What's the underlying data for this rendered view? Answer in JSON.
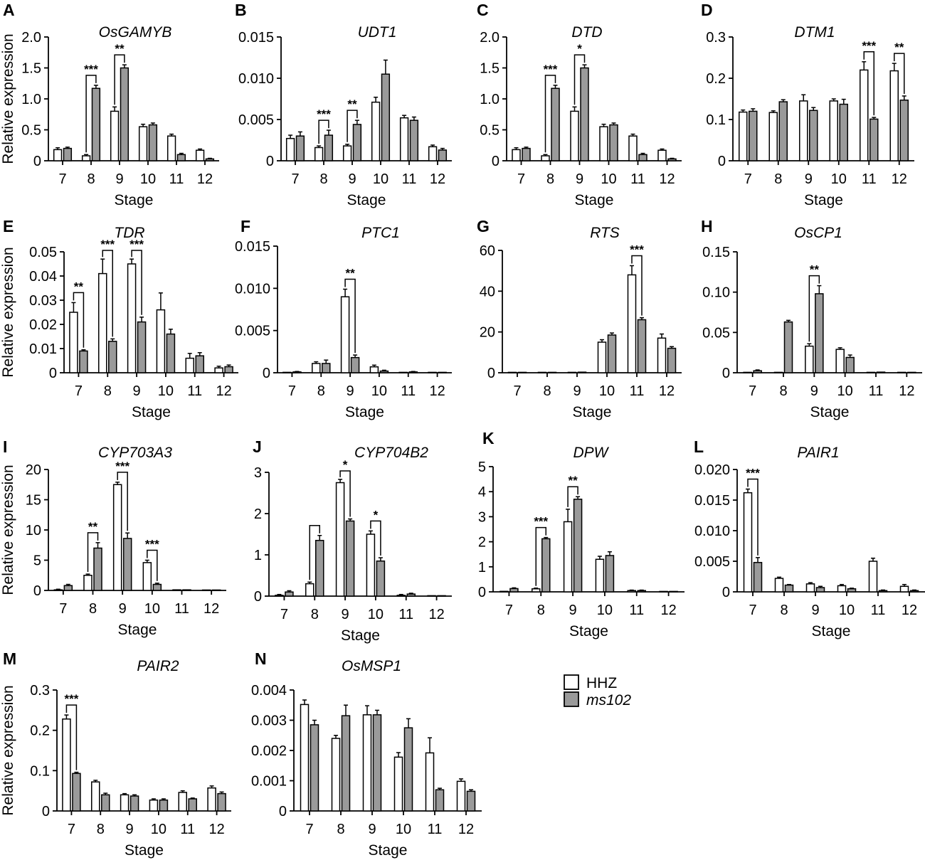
{
  "colors": {
    "hhz_fill": "#ffffff",
    "ms102_fill": "#9a9a9a",
    "stroke": "#000000"
  },
  "legend": {
    "items": [
      {
        "label": "HHZ",
        "italic": false
      },
      {
        "label": "ms102",
        "italic": true
      }
    ]
  },
  "chart_data": [
    {
      "type": "bar",
      "panel": "A",
      "title": "OsGAMYB",
      "xlabel": "Stage",
      "ylabel": "Relative expression",
      "categories": [
        "7",
        "8",
        "9",
        "10",
        "11",
        "12"
      ],
      "ylim": [
        0,
        2.0
      ],
      "yticks": [
        "0",
        "0.5",
        "1.0",
        "1.5",
        "2.0"
      ],
      "series": [
        {
          "name": "HHZ",
          "values": [
            0.18,
            0.08,
            0.8,
            0.55,
            0.4,
            0.17
          ],
          "errors": [
            0.03,
            0.02,
            0.07,
            0.04,
            0.03,
            0.02
          ]
        },
        {
          "name": "ms102",
          "values": [
            0.2,
            1.17,
            1.5,
            0.58,
            0.1,
            0.03
          ],
          "errors": [
            0.02,
            0.05,
            0.05,
            0.03,
            0.02,
            0.01
          ]
        }
      ],
      "significance": [
        {
          "category": "8",
          "label": "***"
        },
        {
          "category": "9",
          "label": "**"
        }
      ]
    },
    {
      "type": "bar",
      "panel": "B",
      "title": "UDT1",
      "xlabel": "Stage",
      "ylabel": "",
      "categories": [
        "7",
        "8",
        "9",
        "10",
        "11",
        "12"
      ],
      "ylim": [
        0,
        0.015
      ],
      "yticks": [
        "0",
        "0.005",
        "0.010",
        "0.015"
      ],
      "series": [
        {
          "name": "HHZ",
          "values": [
            0.0027,
            0.0016,
            0.0018,
            0.0071,
            0.0052,
            0.0017
          ],
          "errors": [
            0.0004,
            0.0002,
            0.0002,
            0.0006,
            0.0003,
            0.0002
          ]
        },
        {
          "name": "ms102",
          "values": [
            0.003,
            0.0031,
            0.0044,
            0.0105,
            0.0049,
            0.0013
          ],
          "errors": [
            0.0005,
            0.0006,
            0.0005,
            0.0017,
            0.0004,
            0.0002
          ]
        }
      ],
      "significance": [
        {
          "category": "8",
          "label": "***"
        },
        {
          "category": "9",
          "label": "**"
        }
      ]
    },
    {
      "type": "bar",
      "panel": "C",
      "title": "DTD",
      "xlabel": "Stage",
      "ylabel": "",
      "categories": [
        "7",
        "8",
        "9",
        "10",
        "11",
        "12"
      ],
      "ylim": [
        0,
        2.0
      ],
      "yticks": [
        "0",
        "0.5",
        "1.0",
        "1.5",
        "2.0"
      ],
      "series": [
        {
          "name": "HHZ",
          "values": [
            0.18,
            0.08,
            0.8,
            0.55,
            0.4,
            0.17
          ],
          "errors": [
            0.03,
            0.02,
            0.07,
            0.04,
            0.03,
            0.02
          ]
        },
        {
          "name": "ms102",
          "values": [
            0.2,
            1.17,
            1.5,
            0.58,
            0.1,
            0.03
          ],
          "errors": [
            0.02,
            0.05,
            0.05,
            0.03,
            0.02,
            0.01
          ]
        }
      ],
      "significance": [
        {
          "category": "8",
          "label": "***"
        },
        {
          "category": "9",
          "label": "*"
        }
      ]
    },
    {
      "type": "bar",
      "panel": "D",
      "title": "DTM1",
      "xlabel": "Stage",
      "ylabel": "",
      "categories": [
        "7",
        "8",
        "9",
        "10",
        "11",
        "12"
      ],
      "ylim": [
        0,
        0.3
      ],
      "yticks": [
        "0",
        "0.1",
        "0.2",
        "0.3"
      ],
      "series": [
        {
          "name": "HHZ",
          "values": [
            0.118,
            0.117,
            0.145,
            0.145,
            0.22,
            0.218
          ],
          "errors": [
            0.005,
            0.004,
            0.015,
            0.005,
            0.02,
            0.018
          ]
        },
        {
          "name": "ms102",
          "values": [
            0.12,
            0.143,
            0.122,
            0.137,
            0.101,
            0.147
          ],
          "errors": [
            0.006,
            0.005,
            0.007,
            0.012,
            0.004,
            0.01
          ]
        }
      ],
      "significance": [
        {
          "category": "11",
          "label": "***"
        },
        {
          "category": "12",
          "label": "**"
        }
      ]
    },
    {
      "type": "bar",
      "panel": "E",
      "title": "TDR",
      "xlabel": "Stage",
      "ylabel": "Relative expression",
      "categories": [
        "7",
        "8",
        "9",
        "10",
        "11",
        "12"
      ],
      "ylim": [
        0,
        0.05
      ],
      "yticks": [
        "0",
        "0.01",
        "0.02",
        "0.03",
        "0.04",
        "0.05"
      ],
      "series": [
        {
          "name": "HHZ",
          "values": [
            0.025,
            0.041,
            0.045,
            0.026,
            0.006,
            0.002
          ],
          "errors": [
            0.004,
            0.006,
            0.002,
            0.007,
            0.002,
            0.0007
          ]
        },
        {
          "name": "ms102",
          "values": [
            0.009,
            0.013,
            0.021,
            0.016,
            0.007,
            0.0025
          ],
          "errors": [
            0.0005,
            0.001,
            0.002,
            0.002,
            0.0013,
            0.0007
          ]
        }
      ],
      "significance": [
        {
          "category": "7",
          "label": "**"
        },
        {
          "category": "8",
          "label": "***"
        },
        {
          "category": "9",
          "label": "***"
        }
      ]
    },
    {
      "type": "bar",
      "panel": "F",
      "title": "PTC1",
      "xlabel": "Stage",
      "ylabel": "",
      "categories": [
        "7",
        "8",
        "9",
        "10",
        "11",
        "12"
      ],
      "ylim": [
        0,
        0.015
      ],
      "yticks": [
        "0",
        "0.005",
        "0.010",
        "0.015"
      ],
      "series": [
        {
          "name": "HHZ",
          "values": [
            5e-05,
            0.0011,
            0.009,
            0.0007,
            5e-05,
            2e-05
          ],
          "errors": [
            5e-05,
            0.0002,
            0.0009,
            0.0002,
            5e-05,
            2e-05
          ]
        },
        {
          "name": "ms102",
          "values": [
            0.0001,
            0.0011,
            0.0018,
            0.0002,
            0.0001,
            2e-05
          ],
          "errors": [
            5e-05,
            0.0004,
            0.0003,
            0.0001,
            5e-05,
            2e-05
          ]
        }
      ],
      "significance": [
        {
          "category": "9",
          "label": "**"
        }
      ]
    },
    {
      "type": "bar",
      "panel": "G",
      "title": "RTS",
      "xlabel": "Stage",
      "ylabel": "",
      "categories": [
        "7",
        "8",
        "9",
        "10",
        "11",
        "12"
      ],
      "ylim": [
        0,
        60
      ],
      "yticks": [
        "0",
        "20",
        "40",
        "60"
      ],
      "series": [
        {
          "name": "HHZ",
          "values": [
            0.1,
            0.1,
            0.1,
            15,
            48,
            17
          ],
          "errors": [
            0.1,
            0.1,
            0.1,
            1.2,
            4.5,
            2.0
          ]
        },
        {
          "name": "ms102",
          "values": [
            0.1,
            0.1,
            0.3,
            18.5,
            26,
            12
          ],
          "errors": [
            0.1,
            0.1,
            0.2,
            1.0,
            1.0,
            0.8
          ]
        }
      ],
      "significance": [
        {
          "category": "11",
          "label": "***"
        }
      ]
    },
    {
      "type": "bar",
      "panel": "H",
      "title": "OsCP1",
      "xlabel": "Stage",
      "ylabel": "",
      "categories": [
        "7",
        "8",
        "9",
        "10",
        "11",
        "12"
      ],
      "ylim": [
        0,
        0.15
      ],
      "yticks": [
        "0",
        "0.05",
        "0.10",
        "0.15"
      ],
      "series": [
        {
          "name": "HHZ",
          "values": [
            0.0003,
            0.0003,
            0.033,
            0.029,
            0.0005,
            0.0002
          ],
          "errors": [
            0.0003,
            0.0003,
            0.003,
            0.002,
            0.0003,
            0.0002
          ]
        },
        {
          "name": "ms102",
          "values": [
            0.0025,
            0.063,
            0.098,
            0.019,
            0.0008,
            0.0003
          ],
          "errors": [
            0.001,
            0.002,
            0.01,
            0.003,
            0.0003,
            0.0002
          ]
        }
      ],
      "significance": [
        {
          "category": "9",
          "label": "**"
        }
      ]
    },
    {
      "type": "bar",
      "panel": "I",
      "title": "CYP703A3",
      "xlabel": "Stage",
      "ylabel": "Relative expression",
      "categories": [
        "7",
        "8",
        "9",
        "10",
        "11",
        "12"
      ],
      "ylim": [
        0,
        20
      ],
      "yticks": [
        "0",
        "5",
        "10",
        "15",
        "20"
      ],
      "series": [
        {
          "name": "HHZ",
          "values": [
            0.1,
            2.5,
            17.5,
            4.6,
            0.1,
            0.05
          ],
          "errors": [
            0.1,
            0.2,
            0.4,
            0.4,
            0.05,
            0.03
          ]
        },
        {
          "name": "ms102",
          "values": [
            0.8,
            7.0,
            8.6,
            1.0,
            0.1,
            0.05
          ],
          "errors": [
            0.2,
            0.9,
            0.9,
            0.2,
            0.05,
            0.03
          ]
        }
      ],
      "significance": [
        {
          "category": "8",
          "label": "**"
        },
        {
          "category": "9",
          "label": "***"
        },
        {
          "category": "10",
          "label": "***"
        }
      ]
    },
    {
      "type": "bar",
      "panel": "J",
      "title": "CYP704B2",
      "xlabel": "Stage",
      "ylabel": "",
      "categories": [
        "7",
        "8",
        "9",
        "10",
        "11",
        "12"
      ],
      "ylim": [
        0,
        3
      ],
      "yticks": [
        "0",
        "1",
        "2",
        "3"
      ],
      "series": [
        {
          "name": "HHZ",
          "values": [
            0.02,
            0.3,
            2.75,
            1.5,
            0.02,
            0.01
          ],
          "errors": [
            0.02,
            0.04,
            0.08,
            0.08,
            0.02,
            0.01
          ]
        },
        {
          "name": "ms102",
          "values": [
            0.1,
            1.35,
            1.82,
            0.85,
            0.05,
            0.01
          ],
          "errors": [
            0.03,
            0.12,
            0.05,
            0.08,
            0.02,
            0.01
          ]
        }
      ],
      "significance": [
        {
          "category": "8",
          "label": ""
        },
        {
          "category": "9",
          "label": "*"
        },
        {
          "category": "10",
          "label": "*"
        }
      ]
    },
    {
      "type": "bar",
      "panel": "K",
      "title": "DPW",
      "xlabel": "Stage",
      "ylabel": "",
      "categories": [
        "7",
        "8",
        "9",
        "10",
        "11",
        "12"
      ],
      "ylim": [
        0,
        5
      ],
      "yticks": [
        "0",
        "1",
        "2",
        "3",
        "4",
        "5"
      ],
      "series": [
        {
          "name": "HHZ",
          "values": [
            0.02,
            0.12,
            2.8,
            1.3,
            0.05,
            0.01
          ],
          "errors": [
            0.02,
            0.03,
            0.5,
            0.12,
            0.02,
            0.01
          ]
        },
        {
          "name": "ms102",
          "values": [
            0.13,
            2.12,
            3.7,
            1.45,
            0.05,
            0.01
          ],
          "errors": [
            0.03,
            0.05,
            0.1,
            0.15,
            0.02,
            0.01
          ]
        }
      ],
      "significance": [
        {
          "category": "8",
          "label": "***"
        },
        {
          "category": "9",
          "label": "**"
        }
      ]
    },
    {
      "type": "bar",
      "panel": "L",
      "title": "PAIR1",
      "xlabel": "Stage",
      "ylabel": "",
      "categories": [
        "7",
        "8",
        "9",
        "10",
        "11",
        "12"
      ],
      "ylim": [
        0,
        0.02
      ],
      "yticks": [
        "0",
        "0.005",
        "0.010",
        "0.015",
        "0.020"
      ],
      "series": [
        {
          "name": "HHZ",
          "values": [
            0.0162,
            0.0022,
            0.0013,
            0.001,
            0.005,
            0.0009
          ],
          "errors": [
            0.0006,
            0.0002,
            0.0002,
            0.0002,
            0.0005,
            0.0003
          ]
        },
        {
          "name": "ms102",
          "values": [
            0.0048,
            0.0011,
            0.0007,
            0.0005,
            0.0002,
            0.0002
          ],
          "errors": [
            0.0008,
            0.0001,
            0.0002,
            0.0001,
            0.0001,
            0.0001
          ]
        }
      ],
      "significance": [
        {
          "category": "7",
          "label": "***"
        }
      ]
    },
    {
      "type": "bar",
      "panel": "M",
      "title": "PAIR2",
      "xlabel": "Stage",
      "ylabel": "Relative expression",
      "categories": [
        "7",
        "8",
        "9",
        "10",
        "11",
        "12"
      ],
      "ylim": [
        0,
        0.3
      ],
      "yticks": [
        "0",
        "0.1",
        "0.2",
        "0.3"
      ],
      "series": [
        {
          "name": "HHZ",
          "values": [
            0.228,
            0.072,
            0.04,
            0.027,
            0.046,
            0.057
          ],
          "errors": [
            0.01,
            0.004,
            0.003,
            0.003,
            0.004,
            0.005
          ]
        },
        {
          "name": "ms102",
          "values": [
            0.093,
            0.04,
            0.037,
            0.027,
            0.03,
            0.043
          ],
          "errors": [
            0.003,
            0.004,
            0.003,
            0.003,
            0.002,
            0.004
          ]
        }
      ],
      "significance": [
        {
          "category": "7",
          "label": "***"
        }
      ]
    },
    {
      "type": "bar",
      "panel": "N",
      "title": "OsMSP1",
      "xlabel": "Stage",
      "ylabel": "",
      "categories": [
        "7",
        "8",
        "9",
        "10",
        "11",
        "12"
      ],
      "ylim": [
        0,
        0.004
      ],
      "yticks": [
        "0",
        "0.001",
        "0.002",
        "0.003",
        "0.004"
      ],
      "series": [
        {
          "name": "HHZ",
          "values": [
            0.00352,
            0.0024,
            0.00318,
            0.00178,
            0.00192,
            0.00098
          ],
          "errors": [
            0.00015,
            0.0001,
            0.0003,
            0.00015,
            0.0005,
            8e-05
          ]
        },
        {
          "name": "ms102",
          "values": [
            0.00285,
            0.00315,
            0.00318,
            0.00275,
            0.0007,
            0.00065
          ],
          "errors": [
            0.00015,
            0.00035,
            0.00015,
            0.0003,
            5e-05,
            5e-05
          ]
        }
      ],
      "significance": []
    }
  ]
}
